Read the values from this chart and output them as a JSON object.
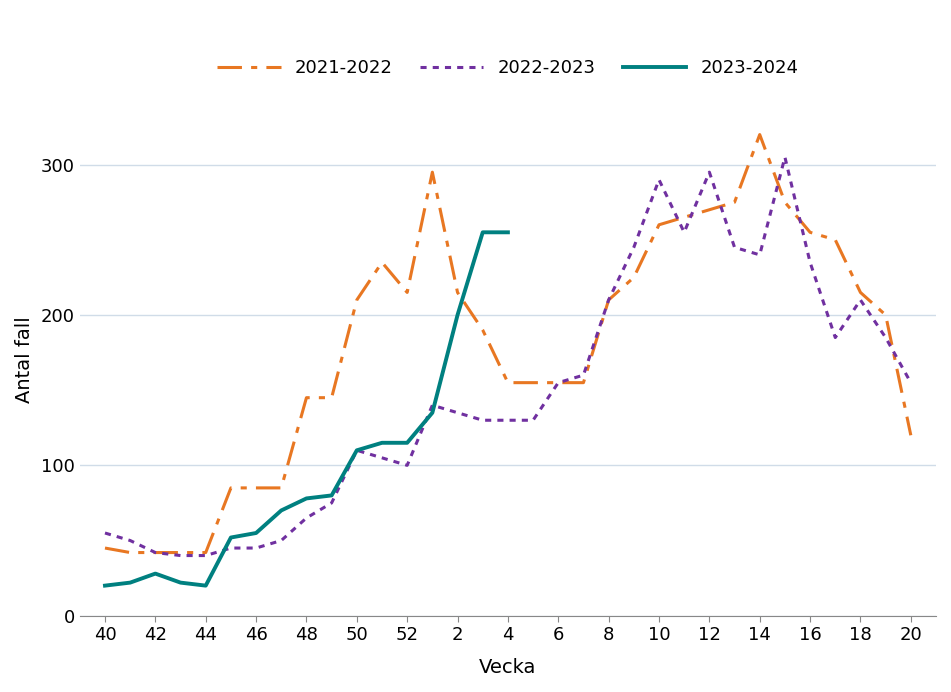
{
  "title": "",
  "xlabel": "Vecka",
  "ylabel": "Antal fall",
  "background_color": "#ffffff",
  "grid_color": "#d0dce8",
  "ylim": [
    0,
    340
  ],
  "yticks": [
    0,
    100,
    200,
    300
  ],
  "xtick_labels": [
    "40",
    "42",
    "44",
    "46",
    "48",
    "50",
    "52",
    "2",
    "4",
    "6",
    "8",
    "10",
    "12",
    "14",
    "16",
    "18",
    "20"
  ],
  "x_positions": [
    40,
    42,
    44,
    46,
    48,
    50,
    52,
    54,
    56,
    58,
    60,
    62,
    64,
    66,
    68,
    70,
    72
  ],
  "series": [
    {
      "label": "2021-2022",
      "color": "#E87722",
      "linestyle": "dashdot",
      "linewidth": 2.2,
      "x": [
        40,
        41,
        42,
        43,
        44,
        45,
        46,
        47,
        48,
        49,
        50,
        51,
        52,
        53,
        54,
        55,
        56,
        57,
        58,
        59,
        60,
        61,
        62,
        63,
        64,
        65,
        66,
        67,
        68,
        69,
        70,
        71,
        72
      ],
      "y": [
        45,
        42,
        42,
        42,
        42,
        85,
        85,
        85,
        145,
        145,
        210,
        235,
        215,
        295,
        215,
        190,
        155,
        155,
        155,
        155,
        210,
        225,
        260,
        265,
        270,
        275,
        320,
        275,
        255,
        250,
        215,
        200,
        120
      ]
    },
    {
      "label": "2022-2023",
      "color": "#7030A0",
      "linestyle": "dotted",
      "linewidth": 2.2,
      "x": [
        40,
        41,
        42,
        43,
        44,
        45,
        46,
        47,
        48,
        49,
        50,
        51,
        52,
        53,
        54,
        55,
        56,
        57,
        58,
        59,
        60,
        61,
        62,
        63,
        64,
        65,
        66,
        67,
        68,
        69,
        70,
        71,
        72
      ],
      "y": [
        55,
        50,
        42,
        40,
        40,
        45,
        45,
        50,
        65,
        75,
        110,
        105,
        100,
        140,
        135,
        130,
        130,
        130,
        155,
        160,
        210,
        245,
        290,
        255,
        295,
        245,
        240,
        305,
        235,
        185,
        210,
        185,
        155
      ]
    },
    {
      "label": "2023-2024",
      "color": "#008080",
      "linestyle": "solid",
      "linewidth": 2.8,
      "x": [
        40,
        41,
        42,
        43,
        44,
        45,
        46,
        47,
        48,
        49,
        50,
        51,
        52,
        53,
        54,
        55,
        56
      ],
      "y": [
        20,
        22,
        28,
        22,
        20,
        52,
        55,
        70,
        78,
        80,
        110,
        115,
        115,
        135,
        200,
        255,
        255
      ]
    }
  ],
  "legend_fontsize": 13,
  "axis_label_fontsize": 14,
  "tick_fontsize": 13
}
